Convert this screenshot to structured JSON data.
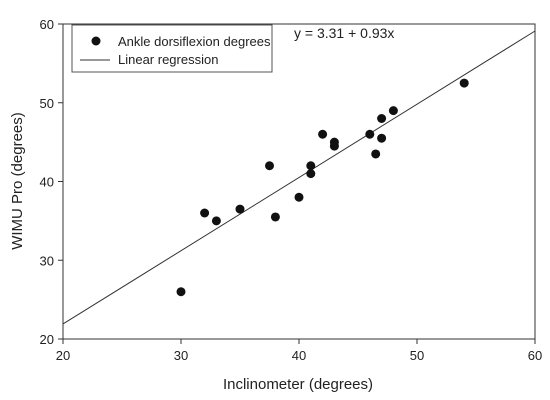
{
  "chart_data": {
    "type": "scatter",
    "title": "",
    "xlabel": "Inclinometer (degrees)",
    "ylabel": "WIMU Pro (degrees)",
    "xlim": [
      20,
      60
    ],
    "ylim": [
      20,
      60
    ],
    "xticks": [
      "20",
      "30",
      "40",
      "50",
      "60"
    ],
    "yticks": [
      "20",
      "30",
      "40",
      "50",
      "60"
    ],
    "grid": false,
    "legend_position": "top-left",
    "annotation": "y = 3.31 + 0.93x",
    "series": [
      {
        "name": "Ankle dorsiflexion degrees",
        "kind": "points",
        "points": [
          [
            30,
            26
          ],
          [
            32,
            36
          ],
          [
            33,
            35
          ],
          [
            35,
            36.5
          ],
          [
            37.5,
            42
          ],
          [
            38,
            35.5
          ],
          [
            40,
            38
          ],
          [
            41,
            41
          ],
          [
            41,
            42
          ],
          [
            42,
            46
          ],
          [
            43,
            44.5
          ],
          [
            43,
            45
          ],
          [
            46,
            46
          ],
          [
            46.5,
            43.5
          ],
          [
            47,
            45.5
          ],
          [
            47,
            48
          ],
          [
            48,
            49
          ],
          [
            54,
            52.5
          ]
        ]
      },
      {
        "name": "Linear regression",
        "kind": "line",
        "intercept": 3.31,
        "slope": 0.93
      }
    ]
  }
}
